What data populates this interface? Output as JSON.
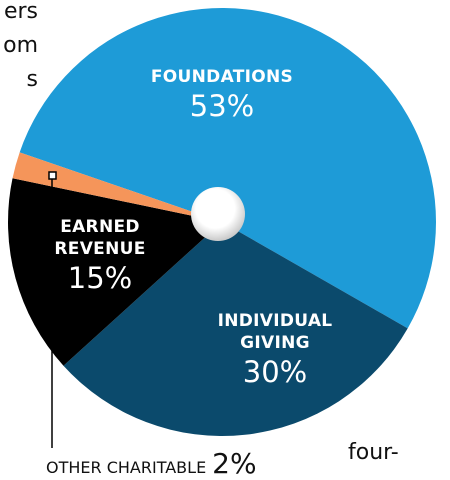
{
  "fragments": [
    "ers",
    "om",
    "s"
  ],
  "trailing_text": "four-",
  "chart_data": {
    "type": "pie",
    "categories": [
      "FOUNDATIONS",
      "INDIVIDUAL GIVING",
      "EARNED REVENUE",
      "OTHER CHARITABLE"
    ],
    "values": [
      53,
      30,
      15,
      2
    ],
    "value_labels": [
      "53%",
      "30%",
      "15%",
      "2%"
    ],
    "colors": [
      "#1e9bd7",
      "#0b4a6c",
      "#000000",
      "#f5955a"
    ]
  }
}
